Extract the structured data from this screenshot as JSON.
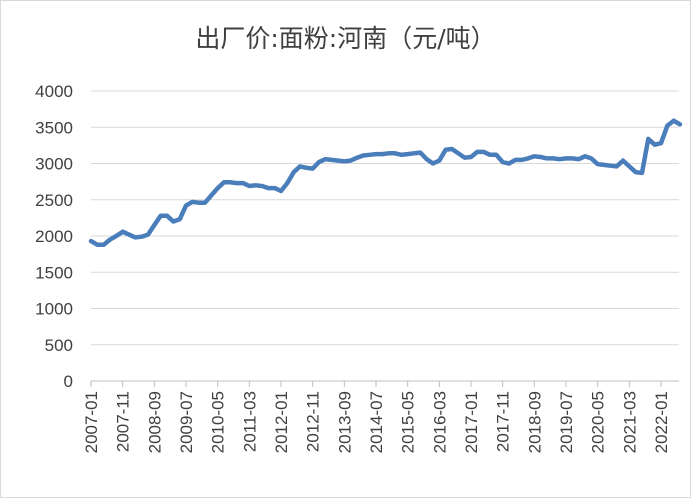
{
  "chart_data": {
    "type": "line",
    "title": "出厂价:面粉:河南（元/吨）",
    "xlabel": "",
    "ylabel": "",
    "ylim": [
      0,
      4000
    ],
    "yticks": [
      0,
      500,
      1000,
      1500,
      2000,
      2500,
      3000,
      3500,
      4000
    ],
    "xticks": [
      "2007-01",
      "2007-11",
      "2008-09",
      "2009-07",
      "2010-05",
      "2011-03",
      "2012-01",
      "2012-11",
      "2013-09",
      "2014-07",
      "2015-05",
      "2016-03",
      "2017-01",
      "2017-11",
      "2018-09",
      "2019-07",
      "2020-05",
      "2021-03",
      "2022-01"
    ],
    "grid": "horizontal",
    "color": "#4a7ebb",
    "series": [
      {
        "x": [
          "2007-01",
          "2007-03",
          "2007-05",
          "2007-07",
          "2007-09",
          "2007-11",
          "2008-01",
          "2008-03",
          "2008-05",
          "2008-07",
          "2008-09",
          "2008-11",
          "2009-01",
          "2009-03",
          "2009-05",
          "2009-07",
          "2009-09",
          "2009-11",
          "2010-01",
          "2010-03",
          "2010-05",
          "2010-07",
          "2010-09",
          "2010-11",
          "2011-01",
          "2011-03",
          "2011-05",
          "2011-07",
          "2011-09",
          "2011-11",
          "2012-01",
          "2012-03",
          "2012-05",
          "2012-07",
          "2012-09",
          "2012-11",
          "2013-01",
          "2013-03",
          "2013-05",
          "2013-07",
          "2013-09",
          "2013-11",
          "2014-01",
          "2014-03",
          "2014-05",
          "2014-07",
          "2014-09",
          "2014-11",
          "2015-01",
          "2015-03",
          "2015-05",
          "2015-07",
          "2015-09",
          "2015-11",
          "2016-01",
          "2016-03",
          "2016-05",
          "2016-07",
          "2016-09",
          "2016-11",
          "2017-01",
          "2017-03",
          "2017-05",
          "2017-07",
          "2017-09",
          "2017-11",
          "2018-01",
          "2018-03",
          "2018-05",
          "2018-07",
          "2018-09",
          "2018-11",
          "2019-01",
          "2019-03",
          "2019-05",
          "2019-07",
          "2019-09",
          "2019-11",
          "2020-01",
          "2020-03",
          "2020-05",
          "2020-07",
          "2020-09",
          "2020-11",
          "2021-01",
          "2021-03",
          "2021-05",
          "2021-07",
          "2021-09",
          "2021-11",
          "2022-01",
          "2022-03",
          "2022-05",
          "2022-07"
        ],
        "values": [
          1930,
          1880,
          1880,
          1950,
          2000,
          2060,
          2020,
          1980,
          1990,
          2020,
          2150,
          2280,
          2280,
          2200,
          2230,
          2420,
          2470,
          2460,
          2460,
          2560,
          2660,
          2740,
          2740,
          2730,
          2730,
          2690,
          2700,
          2690,
          2660,
          2660,
          2620,
          2730,
          2880,
          2960,
          2940,
          2930,
          3020,
          3060,
          3050,
          3040,
          3030,
          3040,
          3080,
          3110,
          3120,
          3130,
          3130,
          3140,
          3140,
          3120,
          3130,
          3140,
          3150,
          3060,
          3000,
          3040,
          3190,
          3200,
          3140,
          3080,
          3090,
          3160,
          3160,
          3120,
          3120,
          3020,
          3000,
          3050,
          3050,
          3070,
          3100,
          3090,
          3070,
          3070,
          3060,
          3070,
          3070,
          3060,
          3100,
          3070,
          2990,
          2980,
          2970,
          2960,
          3040,
          2960,
          2880,
          2870,
          3340,
          3260,
          3280,
          3520,
          3590,
          3540
        ]
      }
    ]
  }
}
